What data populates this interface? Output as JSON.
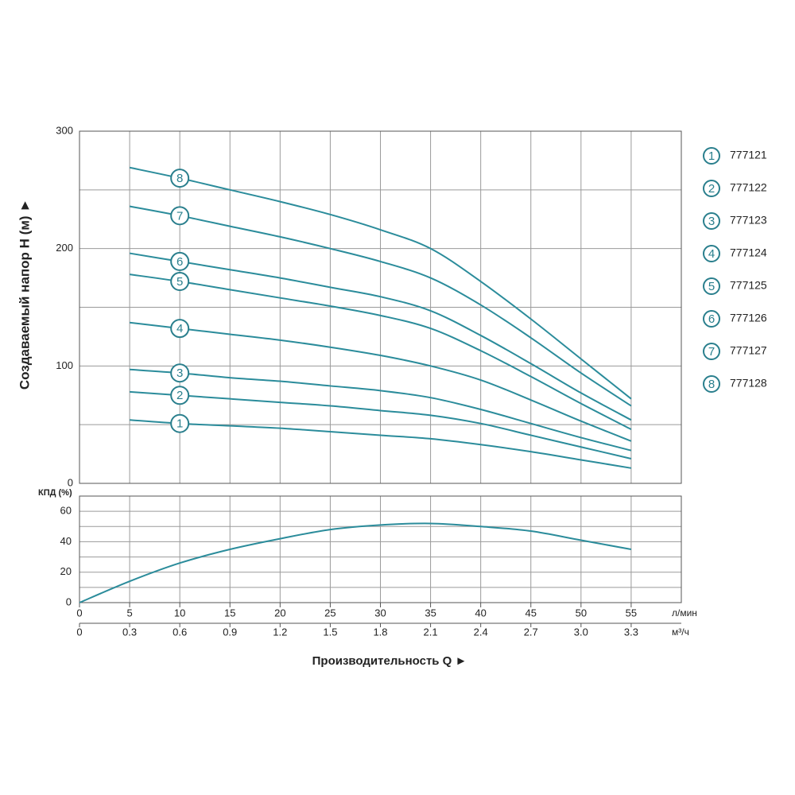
{
  "chart_data": [
    {
      "type": "line",
      "y_label": "Создаваемый напор H (м) ►",
      "x": [
        5,
        10,
        15,
        20,
        25,
        30,
        35,
        40,
        45,
        50,
        55
      ],
      "xlim": [
        0,
        60
      ],
      "xticks": [
        0,
        5,
        10,
        15,
        20,
        25,
        30,
        35,
        40,
        45,
        50,
        55
      ],
      "ylim": [
        0,
        300
      ],
      "yticks": [
        0,
        100,
        200,
        300
      ],
      "minor_yticks": [
        50,
        150,
        250
      ],
      "grid": true,
      "series": [
        {
          "name": "777121",
          "marker": "1",
          "color": "#2b8c9b",
          "values": [
            54,
            51,
            49,
            47,
            44,
            41,
            38,
            33,
            27,
            20,
            13
          ]
        },
        {
          "name": "777122",
          "marker": "2",
          "color": "#2b8c9b",
          "values": [
            78,
            75,
            72,
            69,
            66,
            62,
            58,
            51,
            41,
            31,
            21
          ]
        },
        {
          "name": "777123",
          "marker": "3",
          "color": "#2b8c9b",
          "values": [
            97,
            94,
            90,
            87,
            83,
            79,
            73,
            63,
            51,
            39,
            28
          ]
        },
        {
          "name": "777124",
          "marker": "4",
          "color": "#2b8c9b",
          "values": [
            137,
            132,
            127,
            122,
            116,
            109,
            100,
            88,
            71,
            53,
            36
          ]
        },
        {
          "name": "777125",
          "marker": "5",
          "color": "#2b8c9b",
          "values": [
            178,
            172,
            165,
            158,
            151,
            143,
            132,
            113,
            91,
            68,
            46
          ]
        },
        {
          "name": "777126",
          "marker": "6",
          "color": "#2b8c9b",
          "values": [
            196,
            189,
            182,
            175,
            167,
            159,
            147,
            126,
            102,
            77,
            54
          ]
        },
        {
          "name": "777127",
          "marker": "7",
          "color": "#2b8c9b",
          "values": [
            236,
            228,
            219,
            210,
            200,
            189,
            175,
            152,
            124,
            94,
            66
          ]
        },
        {
          "name": "777128",
          "marker": "8",
          "color": "#2b8c9b",
          "values": [
            269,
            260,
            250,
            240,
            229,
            216,
            200,
            172,
            140,
            106,
            72
          ]
        }
      ]
    },
    {
      "type": "line",
      "y_label": "КПД (%)",
      "x_label": "Производительность Q ►",
      "x": [
        0,
        5,
        10,
        15,
        20,
        25,
        30,
        35,
        40,
        45,
        50,
        55
      ],
      "xlim": [
        0,
        60
      ],
      "xticks": [
        0,
        5,
        10,
        15,
        20,
        25,
        30,
        35,
        40,
        45,
        50,
        55
      ],
      "x_unit": "л/мин",
      "x2lim": [
        0,
        3.6
      ],
      "x2ticks": [
        0,
        0.3,
        0.6,
        0.9,
        1.2,
        1.5,
        1.8,
        2.1,
        2.4,
        2.7,
        {
          "value": 3,
          "label": "3.0"
        },
        3.3
      ],
      "x2_unit": "м³/ч",
      "ylim": [
        0,
        70
      ],
      "yticks": [
        0,
        20,
        40,
        60
      ],
      "minor_yticks": [
        10,
        30,
        50
      ],
      "grid": true,
      "series": [
        {
          "color": "#2b8c9b",
          "values": [
            0,
            14,
            26,
            35,
            42,
            48,
            51,
            52,
            50,
            47,
            41,
            35
          ]
        }
      ]
    }
  ]
}
